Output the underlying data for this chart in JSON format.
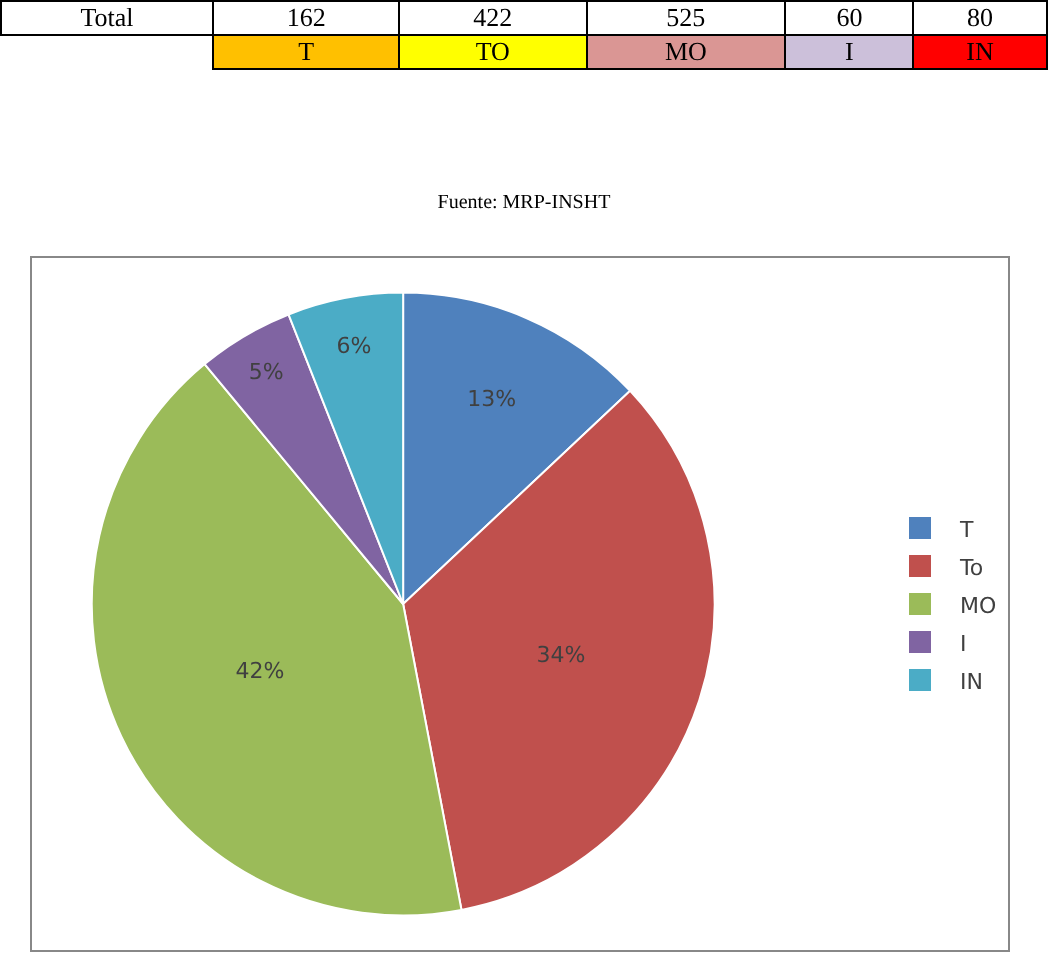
{
  "chart_data": [
    {
      "type": "other",
      "ylabel": "Total",
      "categories": [
        "T",
        "TO",
        "MO",
        "I",
        "IN"
      ],
      "values": [
        162,
        422,
        525,
        60,
        80
      ],
      "data_labels": true,
      "colors": [
        "#ffc000",
        "#ffff00",
        "#da9694",
        "#ccc0da",
        "#ff0000"
      ]
    },
    {
      "type": "pie",
      "annotations": [
        "Fuente: MRP-INSHT"
      ],
      "categories": [
        "T",
        "To",
        "MO",
        "I",
        "IN"
      ],
      "values": [
        13,
        34,
        42,
        5,
        6
      ],
      "value_labels": [
        "13%",
        "34%",
        "42%",
        "5%",
        "6%"
      ],
      "colors": [
        "#4f81bd",
        "#c0504d",
        "#9bbb59",
        "#8064a2",
        "#4bacc6"
      ],
      "legend": "right"
    }
  ]
}
